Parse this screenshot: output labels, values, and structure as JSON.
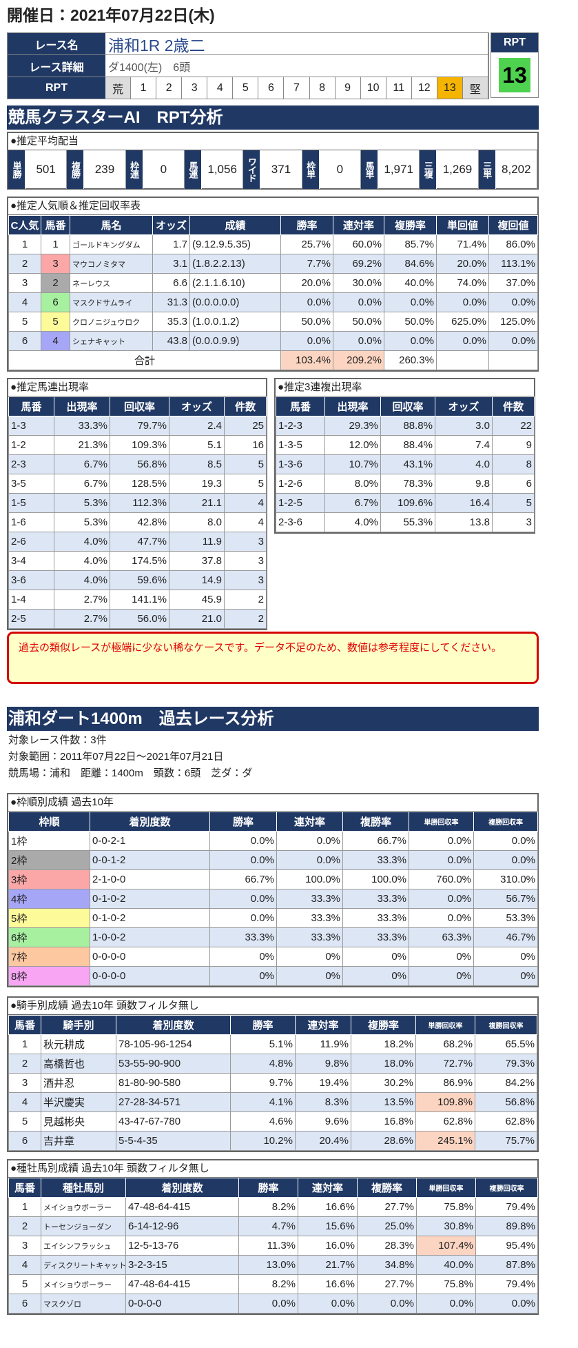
{
  "header": {
    "date": "開催日：2021年07月22日(木)"
  },
  "race": {
    "name_label": "レース名",
    "name": "浦和1R 2歳二",
    "detail_label": "レース詳細",
    "detail": "ダ1400(左)　6頭",
    "rpt_label": "RPT",
    "rpt_scale": [
      "荒",
      "1",
      "2",
      "3",
      "4",
      "5",
      "6",
      "7",
      "8",
      "9",
      "10",
      "11",
      "12",
      "13",
      "堅"
    ],
    "rpt_box_label": "RPT",
    "rpt_value": "13",
    "rpt_highlight_color": "#f5b400",
    "rpt_value_color": "#4fd24f"
  },
  "frame_colors": [
    "#ffffff",
    "#aaaaaa",
    "#fba7a7",
    "#a6a6f6",
    "#fdfa9a",
    "#a6f0a0",
    "#fdc8a0",
    "#f8a6f4"
  ],
  "section1": {
    "title": "競馬クラスターAI　RPT分析"
  },
  "payout": {
    "label": "●推定平均配当",
    "items": [
      {
        "name": "単勝",
        "value": "501"
      },
      {
        "name": "複勝",
        "value": "239"
      },
      {
        "name": "枠連",
        "value": "0"
      },
      {
        "name": "馬連",
        "value": "1,056"
      },
      {
        "name": "ワイド",
        "value": "371"
      },
      {
        "name": "枠単",
        "value": "0"
      },
      {
        "name": "馬単",
        "value": "1,971"
      },
      {
        "name": "三複",
        "value": "1,269"
      },
      {
        "name": "三単",
        "value": "8,202"
      }
    ]
  },
  "popularity": {
    "label": "●推定人気順＆推定回収率表",
    "headers": [
      "C人気",
      "馬番",
      "馬名",
      "オッズ",
      "成績",
      "勝率",
      "連対率",
      "複勝率",
      "単回値",
      "複回値"
    ],
    "rows": [
      [
        "1",
        "1",
        "ゴールドキングダム",
        "1.7",
        "(9.12.9.5.35)",
        "25.7%",
        "60.0%",
        "85.7%",
        "71.4%",
        "86.0%"
      ],
      [
        "2",
        "3",
        "マウコノミタマ",
        "3.1",
        "(1.8.2.2.13)",
        "7.7%",
        "69.2%",
        "84.6%",
        "20.0%",
        "113.1%"
      ],
      [
        "3",
        "2",
        "ネーレウス",
        "6.6",
        "(2.1.1.6.10)",
        "20.0%",
        "30.0%",
        "40.0%",
        "74.0%",
        "37.0%"
      ],
      [
        "4",
        "6",
        "マスクドサムライ",
        "31.3",
        "(0.0.0.0.0)",
        "0.0%",
        "0.0%",
        "0.0%",
        "0.0%",
        "0.0%"
      ],
      [
        "5",
        "5",
        "クロノニジュウロク",
        "35.3",
        "(1.0.0.1.2)",
        "50.0%",
        "50.0%",
        "50.0%",
        "625.0%",
        "125.0%"
      ],
      [
        "6",
        "4",
        "シェナキャット",
        "43.8",
        "(0.0.0.9.9)",
        "0.0%",
        "0.0%",
        "0.0%",
        "0.0%",
        "0.0%"
      ]
    ],
    "total": {
      "label": "合計",
      "values": [
        "103.4%",
        "209.2%",
        "260.3%"
      ]
    }
  },
  "umaren": {
    "label": "●推定馬連出現率",
    "headers": [
      "馬番",
      "出現率",
      "回収率",
      "オッズ",
      "件数"
    ],
    "rows": [
      [
        "1-3",
        "33.3%",
        "79.7%",
        "2.4",
        "25"
      ],
      [
        "1-2",
        "21.3%",
        "109.3%",
        "5.1",
        "16"
      ],
      [
        "2-3",
        "6.7%",
        "56.8%",
        "8.5",
        "5"
      ],
      [
        "3-5",
        "6.7%",
        "128.5%",
        "19.3",
        "5"
      ],
      [
        "1-5",
        "5.3%",
        "112.3%",
        "21.1",
        "4"
      ],
      [
        "1-6",
        "5.3%",
        "42.8%",
        "8.0",
        "4"
      ],
      [
        "2-6",
        "4.0%",
        "47.7%",
        "11.9",
        "3"
      ],
      [
        "3-4",
        "4.0%",
        "174.5%",
        "37.8",
        "3"
      ],
      [
        "3-6",
        "4.0%",
        "59.6%",
        "14.9",
        "3"
      ],
      [
        "1-4",
        "2.7%",
        "141.1%",
        "45.9",
        "2"
      ],
      [
        "2-5",
        "2.7%",
        "56.0%",
        "21.0",
        "2"
      ]
    ]
  },
  "sanrenpuku": {
    "label": "●推定3連複出現率",
    "headers": [
      "馬番",
      "出現率",
      "回収率",
      "オッズ",
      "件数"
    ],
    "rows": [
      [
        "1-2-3",
        "29.3%",
        "88.8%",
        "3.0",
        "22"
      ],
      [
        "1-3-5",
        "12.0%",
        "88.4%",
        "7.4",
        "9"
      ],
      [
        "1-3-6",
        "10.7%",
        "43.1%",
        "4.0",
        "8"
      ],
      [
        "1-2-6",
        "8.0%",
        "78.3%",
        "9.8",
        "6"
      ],
      [
        "1-2-5",
        "6.7%",
        "109.6%",
        "16.4",
        "5"
      ],
      [
        "2-3-6",
        "4.0%",
        "55.3%",
        "13.8",
        "3"
      ]
    ]
  },
  "warning": "過去の類似レースが極端に少ない稀なケースです。データ不足のため、数値は参考程度にしてください。",
  "section2": {
    "title": "浦和ダート1400m　過去レース分析"
  },
  "info": {
    "lines": [
      "対象レース件数：3件",
      "対象範囲：2011年07月22日～2021年07月21日",
      "競馬場：浦和　距離：1400m　頭数：6頭　芝ダ：ダ"
    ]
  },
  "frame": {
    "label": "●枠順別成績 過去10年",
    "headers": [
      "枠順",
      "着別度数",
      "勝率",
      "連対率",
      "複勝率",
      "単勝回収率",
      "複勝回収率"
    ],
    "rows": [
      [
        "1枠",
        "0-0-2-1",
        "0.0%",
        "0.0%",
        "66.7%",
        "0.0%",
        "0.0%"
      ],
      [
        "2枠",
        "0-0-1-2",
        "0.0%",
        "0.0%",
        "33.3%",
        "0.0%",
        "0.0%"
      ],
      [
        "3枠",
        "2-1-0-0",
        "66.7%",
        "100.0%",
        "100.0%",
        "760.0%",
        "310.0%"
      ],
      [
        "4枠",
        "0-1-0-2",
        "0.0%",
        "33.3%",
        "33.3%",
        "0.0%",
        "56.7%"
      ],
      [
        "5枠",
        "0-1-0-2",
        "0.0%",
        "33.3%",
        "33.3%",
        "0.0%",
        "53.3%"
      ],
      [
        "6枠",
        "1-0-0-2",
        "33.3%",
        "33.3%",
        "33.3%",
        "63.3%",
        "46.7%"
      ],
      [
        "7枠",
        "0-0-0-0",
        "0%",
        "0%",
        "0%",
        "0%",
        "0%"
      ],
      [
        "8枠",
        "0-0-0-0",
        "0%",
        "0%",
        "0%",
        "0%",
        "0%"
      ]
    ]
  },
  "jockey": {
    "label": "●騎手別成績 過去10年 頭数フィルタ無し",
    "headers": [
      "馬番",
      "騎手別",
      "着別度数",
      "勝率",
      "連対率",
      "複勝率",
      "単勝回収率",
      "複勝回収率"
    ],
    "rows": [
      [
        "1",
        "秋元耕成",
        "78-105-96-1254",
        "5.1%",
        "11.9%",
        "18.2%",
        "68.2%",
        "65.5%"
      ],
      [
        "2",
        "高橋哲也",
        "53-55-90-900",
        "4.8%",
        "9.8%",
        "18.0%",
        "72.7%",
        "79.3%"
      ],
      [
        "3",
        "酒井忍",
        "81-80-90-580",
        "9.7%",
        "19.4%",
        "30.2%",
        "86.9%",
        "84.2%"
      ],
      [
        "4",
        "半沢慶実",
        "27-28-34-571",
        "4.1%",
        "8.3%",
        "13.5%",
        "109.8%",
        "56.8%"
      ],
      [
        "5",
        "見越彬央",
        "43-47-67-780",
        "4.6%",
        "9.6%",
        "16.8%",
        "62.8%",
        "62.8%"
      ],
      [
        "6",
        "吉井章",
        "5-5-4-35",
        "10.2%",
        "20.4%",
        "28.6%",
        "245.1%",
        "75.7%"
      ]
    ]
  },
  "sire": {
    "label": "●種牡馬別成績 過去10年 頭数フィルタ無し",
    "headers": [
      "馬番",
      "種牡馬別",
      "着別度数",
      "勝率",
      "連対率",
      "複勝率",
      "単勝回収率",
      "複勝回収率"
    ],
    "rows": [
      [
        "1",
        "メイショウボーラー",
        "47-48-64-415",
        "8.2%",
        "16.6%",
        "27.7%",
        "75.8%",
        "79.4%"
      ],
      [
        "2",
        "トーセンジョーダン",
        "6-14-12-96",
        "4.7%",
        "15.6%",
        "25.0%",
        "30.8%",
        "89.8%"
      ],
      [
        "3",
        "エイシンフラッシュ",
        "12-5-13-76",
        "11.3%",
        "16.0%",
        "28.3%",
        "107.4%",
        "95.4%"
      ],
      [
        "4",
        "ディスクリートキャット",
        "3-2-3-15",
        "13.0%",
        "21.7%",
        "34.8%",
        "40.0%",
        "87.8%"
      ],
      [
        "5",
        "メイショウボーラー",
        "47-48-64-415",
        "8.2%",
        "16.6%",
        "27.7%",
        "75.8%",
        "79.4%"
      ],
      [
        "6",
        "マスクゾロ",
        "0-0-0-0",
        "0.0%",
        "0.0%",
        "0.0%",
        "0.0%",
        "0.0%"
      ]
    ]
  }
}
